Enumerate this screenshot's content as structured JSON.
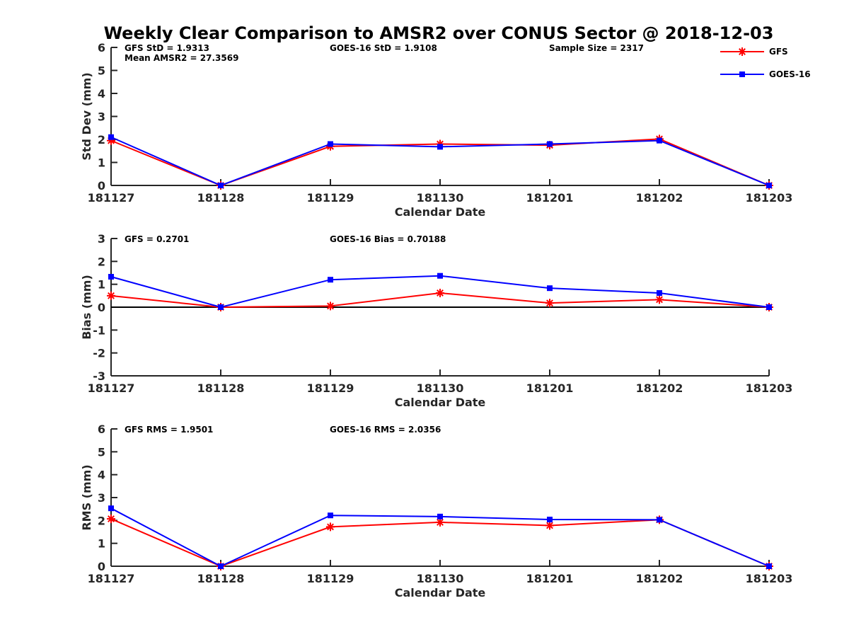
{
  "chart_data": {
    "type": "line",
    "title": "Weekly Clear Comparison to AMSR2 over CONUS Sector @ 2018-12-03",
    "legend": {
      "placement": "top-right",
      "entries": [
        {
          "name": "GFS",
          "color": "#ff0000",
          "marker": "asterisk"
        },
        {
          "name": "GOES-16",
          "color": "#0000ff",
          "marker": "square"
        }
      ]
    },
    "panels": [
      {
        "id": "stddev",
        "ylabel": "Std Dev (mm)",
        "xlabel": "Calendar Date",
        "ylim": [
          0,
          6
        ],
        "yticks": [
          "0",
          "1",
          "2",
          "3",
          "4",
          "5",
          "6"
        ],
        "zero_line": false,
        "categories": [
          "181127",
          "181128",
          "181129",
          "181130",
          "181201",
          "181202",
          "181203"
        ],
        "series": [
          {
            "name": "GFS",
            "color": "#ff0000",
            "values": [
              1.95,
              0,
              1.7,
              1.8,
              1.75,
              2.02,
              0
            ]
          },
          {
            "name": "GOES-16",
            "color": "#0000ff",
            "values": [
              2.1,
              0,
              1.8,
              1.68,
              1.8,
              1.95,
              0
            ]
          }
        ],
        "annotations": [
          {
            "text": "GFS StD = 1.9313",
            "pos": "left"
          },
          {
            "text": "Mean AMSR2 = 27.3569",
            "pos": "left-2"
          },
          {
            "text": "GOES-16 StD = 1.9108",
            "pos": "mid"
          },
          {
            "text": "Sample Size = 2317",
            "pos": "right"
          }
        ]
      },
      {
        "id": "bias",
        "ylabel": "Bias (mm)",
        "xlabel": "Calendar Date",
        "ylim": [
          -3,
          3
        ],
        "yticks": [
          "-3",
          "-2",
          "-1",
          "0",
          "1",
          "2",
          "3"
        ],
        "zero_line": true,
        "categories": [
          "181127",
          "181128",
          "181129",
          "181130",
          "181201",
          "181202",
          "181203"
        ],
        "series": [
          {
            "name": "GFS",
            "color": "#ff0000",
            "values": [
              0.5,
              0,
              0.05,
              0.62,
              0.18,
              0.33,
              0
            ]
          },
          {
            "name": "GOES-16",
            "color": "#0000ff",
            "values": [
              1.33,
              0,
              1.2,
              1.37,
              0.83,
              0.62,
              0
            ]
          }
        ],
        "annotations": [
          {
            "text": "GFS = 0.2701",
            "pos": "left"
          },
          {
            "text": "GOES-16 Bias  = 0.70188",
            "pos": "mid"
          }
        ]
      },
      {
        "id": "rms",
        "ylabel": "RMS (mm)",
        "xlabel": "Calendar Date",
        "ylim": [
          0,
          6
        ],
        "yticks": [
          "0",
          "1",
          "2",
          "3",
          "4",
          "5",
          "6"
        ],
        "zero_line": false,
        "categories": [
          "181127",
          "181128",
          "181129",
          "181130",
          "181201",
          "181202",
          "181203"
        ],
        "series": [
          {
            "name": "GFS",
            "color": "#ff0000",
            "values": [
              2.07,
              0,
              1.72,
              1.92,
              1.78,
              2.03,
              0
            ]
          },
          {
            "name": "GOES-16",
            "color": "#0000ff",
            "values": [
              2.53,
              0,
              2.22,
              2.17,
              2.04,
              2.03,
              0
            ]
          }
        ],
        "annotations": [
          {
            "text": "GFS RMS = 1.9501",
            "pos": "left"
          },
          {
            "text": "GOES-16 RMS = 2.0356",
            "pos": "mid"
          }
        ]
      }
    ]
  }
}
